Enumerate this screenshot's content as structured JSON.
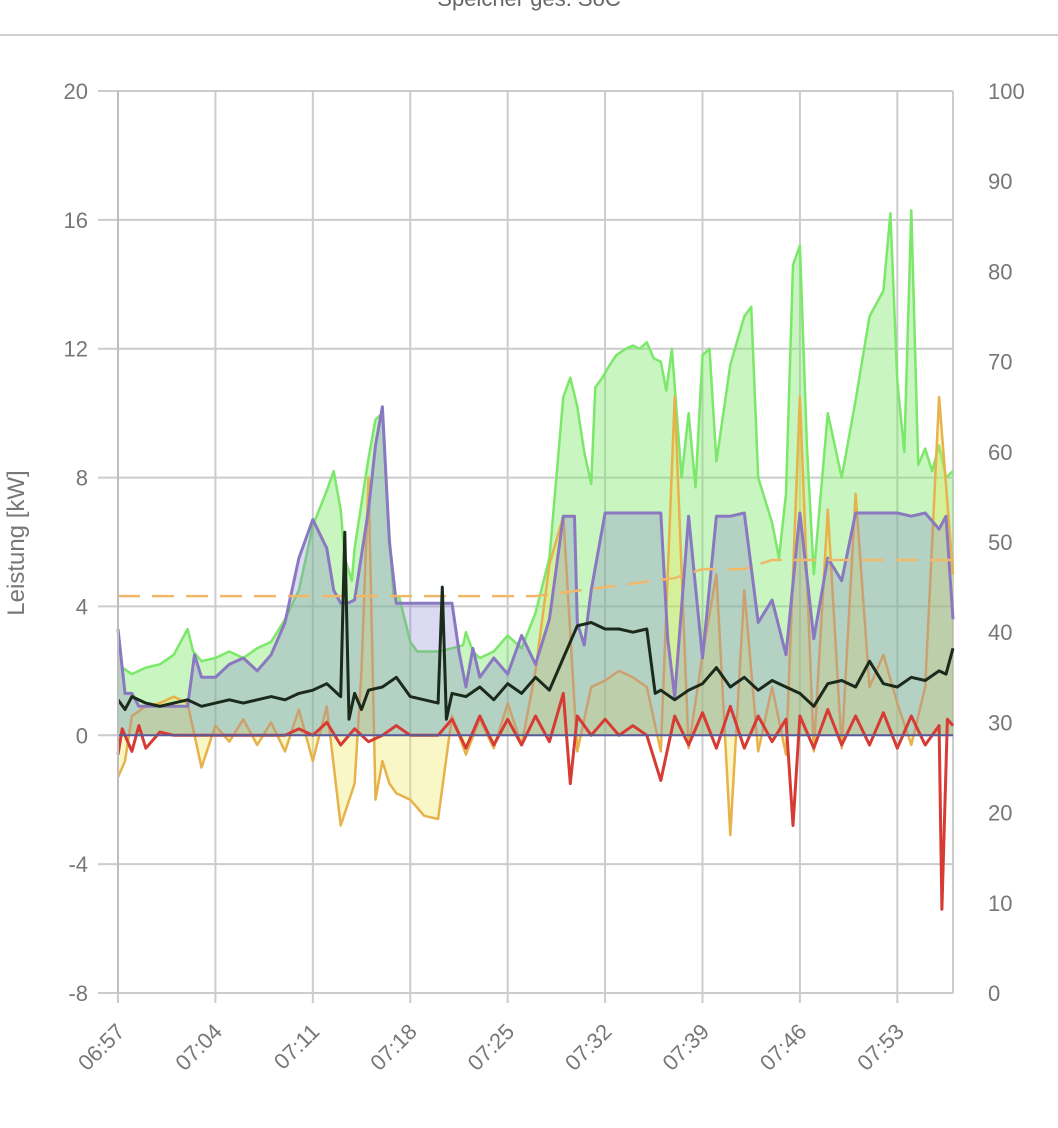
{
  "legend": {
    "partial_text": "Speicher ges. SoC"
  },
  "chart_data": {
    "type": "area",
    "xlabel": "",
    "ylabel": "Leistung [kW]",
    "ylabel_right": "",
    "x_ticks": [
      "06:57",
      "07:04",
      "07:11",
      "07:18",
      "07:25",
      "07:32",
      "07:39",
      "07:46",
      "07:53"
    ],
    "x_range_minutes": [
      0,
      60
    ],
    "ylim": [
      -8,
      20
    ],
    "y_ticks": [
      -8,
      -4,
      0,
      4,
      8,
      12,
      16,
      20
    ],
    "y2lim": [
      0,
      100
    ],
    "y2_ticks": [
      0,
      10,
      20,
      30,
      40,
      50,
      60,
      70,
      80,
      90,
      100
    ],
    "grid": true,
    "colors": {
      "pv": "#7be86a",
      "load": "#8a78c0",
      "grid": "#e7b24c",
      "battery": "#d63c34",
      "soc": "#f0b96a",
      "house": "#1a1a1a"
    },
    "series": [
      {
        "key": "pv",
        "axis": "left",
        "x": [
          0,
          0.3,
          1,
          2,
          3,
          4,
          5,
          5.4,
          6,
          7,
          8,
          9,
          10,
          11,
          12,
          13,
          14,
          15,
          15.5,
          16,
          16.3,
          16.8,
          17,
          17.5,
          18,
          18.5,
          19,
          19.3,
          19.8,
          20.2,
          21,
          21.5,
          22,
          23,
          24,
          24.8,
          25,
          25.5,
          26,
          27,
          28,
          29,
          30,
          31,
          32,
          32.5,
          33,
          33.5,
          34,
          34.3,
          34.8,
          35.2,
          35.8,
          36.5,
          37,
          37.5,
          38,
          38.5,
          39,
          39.4,
          39.8,
          40.5,
          41,
          41.5,
          42,
          42.5,
          43,
          44,
          45,
          45.5,
          46,
          47,
          47.5,
          48,
          48.5,
          49,
          49.5,
          50,
          50.5,
          51,
          52,
          53,
          54,
          55,
          55.5,
          56,
          56.5,
          57,
          57.5,
          58,
          58.5,
          59,
          59.5,
          60
        ],
        "y": [
          3.2,
          2.1,
          1.9,
          2.1,
          2.2,
          2.5,
          3.3,
          2.6,
          2.3,
          2.4,
          2.6,
          2.4,
          2.7,
          2.9,
          3.6,
          4.5,
          6.5,
          7.6,
          8.2,
          7.0,
          5.5,
          4.8,
          5.8,
          7.2,
          8.6,
          9.8,
          10,
          7.5,
          4.3,
          4.3,
          2.9,
          2.6,
          2.6,
          2.6,
          2.7,
          2.8,
          3.2,
          2.6,
          2.4,
          2.6,
          3.1,
          2.7,
          3.8,
          5.5,
          10.5,
          11.1,
          10.2,
          8.8,
          7.8,
          10.8,
          11.1,
          11.4,
          11.8,
          12.0,
          12.1,
          12.0,
          12.2,
          11.7,
          11.6,
          10.7,
          12.0,
          8.0,
          10.0,
          7.7,
          11.8,
          12.0,
          8.5,
          11.5,
          13.0,
          13.3,
          8.0,
          6.6,
          5.5,
          7.5,
          14.6,
          15.2,
          9.0,
          5.0,
          7.5,
          10.0,
          8.0,
          10.4,
          13.0,
          13.8,
          16.2,
          11.0,
          8.8,
          16.3,
          8.4,
          8.9,
          8.2,
          9.0,
          8.0,
          8.2
        ]
      },
      {
        "key": "load",
        "axis": "left",
        "x": [
          0,
          0.5,
          1,
          1.5,
          2,
          3,
          4,
          5,
          5.5,
          6,
          7,
          8,
          9,
          10,
          11,
          12,
          13,
          14,
          15,
          15.5,
          16,
          16.5,
          17,
          18,
          18.5,
          19,
          19.5,
          20,
          21,
          22,
          23,
          24,
          24.5,
          25,
          25.5,
          26,
          27,
          28,
          29,
          30,
          31,
          32,
          32.8,
          33,
          33.5,
          34,
          35,
          36,
          37,
          38,
          39,
          39.5,
          40,
          41,
          42,
          43,
          44,
          45,
          46,
          47,
          48,
          49,
          50,
          51,
          52,
          53,
          54,
          55,
          56,
          57,
          58,
          59,
          59.5,
          60
        ],
        "y": [
          3.3,
          1.3,
          1.3,
          0.9,
          0.9,
          0.9,
          0.9,
          0.9,
          2.5,
          1.8,
          1.8,
          2.2,
          2.4,
          2.0,
          2.5,
          3.5,
          5.5,
          6.7,
          5.8,
          4.5,
          4.1,
          4.1,
          4.2,
          7.0,
          9.0,
          10.2,
          6.0,
          4.1,
          4.1,
          4.1,
          4.1,
          4.1,
          2.6,
          1.5,
          2.7,
          1.8,
          2.4,
          1.9,
          3.1,
          2.2,
          3.6,
          6.8,
          6.8,
          3.5,
          2.8,
          4.5,
          6.9,
          6.9,
          6.9,
          6.9,
          6.9,
          3.0,
          1.2,
          6.8,
          2.4,
          6.8,
          6.8,
          6.9,
          3.5,
          4.2,
          2.5,
          6.9,
          3.0,
          5.5,
          4.8,
          6.9,
          6.9,
          6.9,
          6.9,
          6.8,
          6.9,
          6.4,
          6.8,
          3.6
        ]
      },
      {
        "key": "grid",
        "axis": "left",
        "x": [
          0,
          0.5,
          1,
          2,
          3,
          4,
          5,
          6,
          7,
          8,
          9,
          10,
          11,
          12,
          13,
          14,
          15,
          16,
          17,
          17.5,
          18,
          18.5,
          19,
          19.5,
          20,
          21,
          22,
          23,
          24,
          25,
          26,
          27,
          28,
          29,
          30,
          31,
          32,
          33,
          34,
          35,
          36,
          37,
          38,
          39,
          40,
          41,
          42,
          43,
          44,
          45,
          46,
          47,
          48,
          49,
          50,
          51,
          52,
          53,
          54,
          55,
          56,
          57,
          58,
          59,
          60
        ],
        "y": [
          -1.3,
          -0.8,
          0.6,
          0.9,
          1.0,
          1.2,
          1.0,
          -1.0,
          0.3,
          -0.2,
          0.5,
          -0.3,
          0.4,
          -0.5,
          0.8,
          -0.8,
          0.9,
          -2.8,
          -1.5,
          2.0,
          8.0,
          -2.0,
          -0.8,
          -1.5,
          -1.8,
          -2.0,
          -2.5,
          -2.6,
          0.6,
          -0.6,
          0.5,
          -0.4,
          1.0,
          -0.3,
          2.0,
          5.3,
          6.8,
          -0.5,
          1.5,
          1.7,
          2.0,
          1.8,
          1.5,
          -0.5,
          10.5,
          -0.4,
          2.5,
          5.0,
          -3.1,
          4.5,
          -0.5,
          1.5,
          -0.6,
          10.5,
          -0.5,
          7.0,
          -0.4,
          7.5,
          1.5,
          2.5,
          1.0,
          -0.3,
          1.5,
          10.5,
          5.0
        ]
      },
      {
        "key": "battery",
        "axis": "left",
        "x": [
          0,
          0.3,
          1,
          1.5,
          2,
          3,
          4,
          5,
          6,
          7,
          8,
          9,
          10,
          11,
          12,
          13,
          14,
          15,
          16,
          17,
          18,
          19,
          20,
          21,
          22,
          23,
          24,
          25,
          26,
          27,
          28,
          29,
          30,
          31,
          32,
          32.5,
          33,
          34,
          35,
          36,
          37,
          38,
          39,
          40,
          41,
          42,
          43,
          44,
          45,
          46,
          47,
          48,
          48.5,
          49,
          50,
          51,
          52,
          53,
          54,
          55,
          56,
          57,
          58,
          59,
          59.2,
          59.6,
          60
        ],
        "y": [
          -0.6,
          0.2,
          -0.5,
          0.3,
          -0.4,
          0.1,
          0.0,
          0.0,
          0.0,
          0.0,
          0.0,
          0.0,
          0.0,
          0.0,
          0.0,
          0.2,
          0.0,
          0.4,
          -0.3,
          0.2,
          -0.2,
          0.0,
          0.3,
          0.0,
          0.0,
          0.0,
          0.5,
          -0.4,
          0.6,
          -0.3,
          0.5,
          -0.3,
          0.6,
          -0.2,
          1.3,
          -1.5,
          0.6,
          0.0,
          0.5,
          0.0,
          0.3,
          0.0,
          -1.4,
          0.6,
          -0.3,
          0.7,
          -0.4,
          0.9,
          -0.4,
          0.6,
          -0.2,
          0.5,
          -2.8,
          0.6,
          -0.4,
          0.8,
          -0.3,
          0.6,
          -0.3,
          0.7,
          -0.4,
          0.6,
          -0.3,
          0.3,
          -5.4,
          0.5,
          0.3
        ]
      },
      {
        "key": "house",
        "axis": "left",
        "x": [
          0,
          0.5,
          1,
          2,
          3,
          4,
          5,
          6,
          7,
          8,
          9,
          10,
          11,
          12,
          13,
          14,
          15,
          16,
          16.3,
          16.6,
          17,
          17.5,
          18,
          19,
          20,
          21,
          22,
          23,
          23.3,
          23.6,
          24,
          25,
          26,
          27,
          28,
          29,
          30,
          31,
          32,
          33,
          34,
          35,
          36,
          37,
          38,
          38.6,
          39,
          40,
          41,
          42,
          43,
          44,
          45,
          46,
          47,
          48,
          49,
          50,
          51,
          52,
          53,
          54,
          55,
          56,
          57,
          58,
          59,
          59.5,
          60
        ],
        "y": [
          1.1,
          0.8,
          1.2,
          1.0,
          0.9,
          1.0,
          1.1,
          0.9,
          1.0,
          1.1,
          1.0,
          1.1,
          1.2,
          1.1,
          1.3,
          1.4,
          1.6,
          1.2,
          6.3,
          0.5,
          1.3,
          0.8,
          1.4,
          1.5,
          1.8,
          1.2,
          1.1,
          1.0,
          4.6,
          0.5,
          1.3,
          1.2,
          1.5,
          1.1,
          1.6,
          1.3,
          1.8,
          1.4,
          2.4,
          3.4,
          3.5,
          3.3,
          3.3,
          3.2,
          3.3,
          1.3,
          1.4,
          1.1,
          1.4,
          1.6,
          2.1,
          1.5,
          1.8,
          1.4,
          1.7,
          1.5,
          1.3,
          0.9,
          1.6,
          1.7,
          1.5,
          2.3,
          1.6,
          1.5,
          1.8,
          1.7,
          2.0,
          1.9,
          2.7
        ]
      },
      {
        "key": "soc",
        "axis": "right",
        "dashed": true,
        "x": [
          0,
          5,
          10,
          15,
          20,
          25,
          30,
          35,
          40,
          42,
          45,
          47,
          50,
          55,
          60
        ],
        "y": [
          44,
          44,
          44,
          44,
          44,
          44,
          44,
          45,
          46,
          47,
          47,
          48,
          48,
          48,
          48
        ]
      }
    ]
  }
}
